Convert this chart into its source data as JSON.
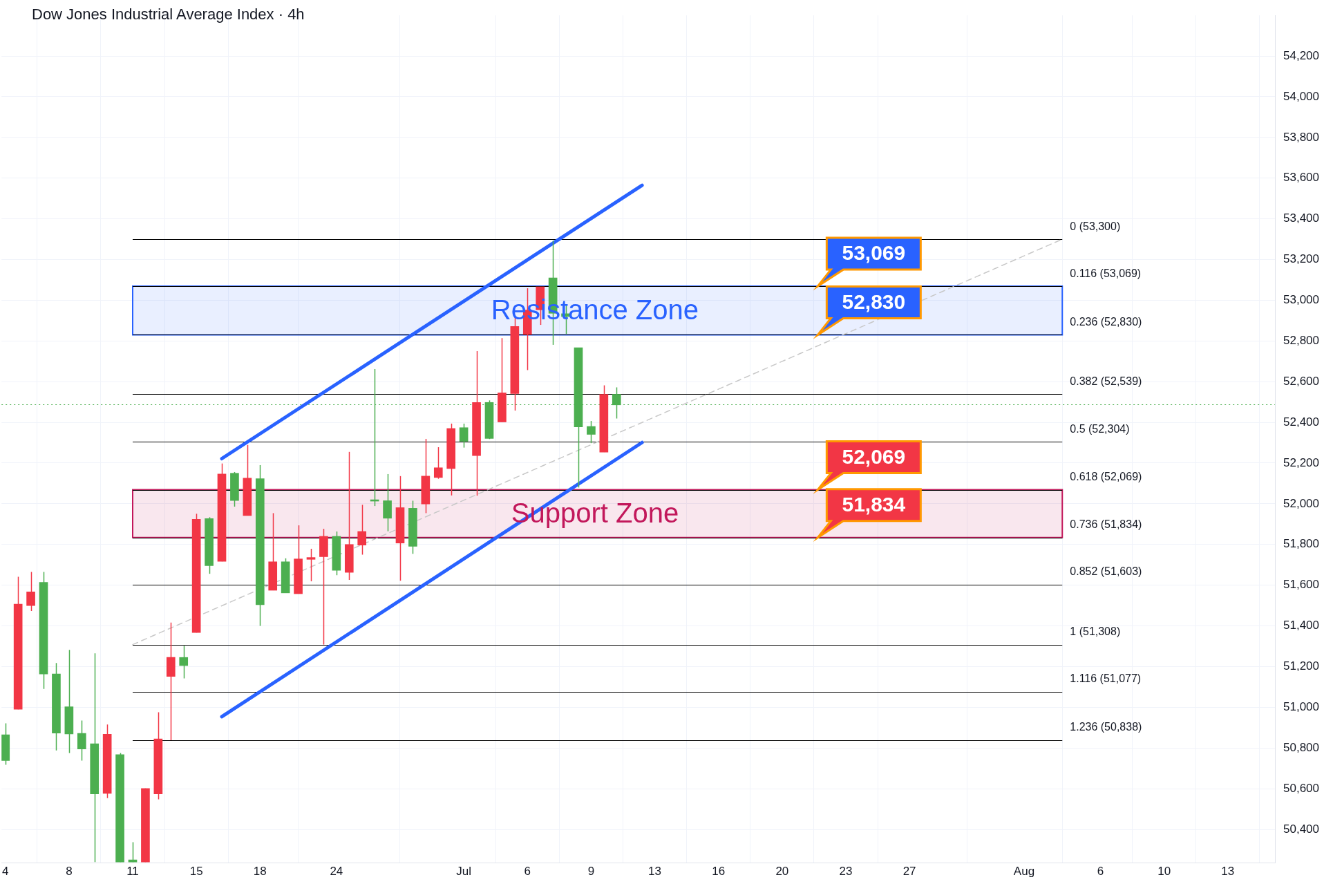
{
  "chart_data": {
    "type": "candlestick",
    "title": "Dow Jones Industrial Average Index · 4h",
    "categories": [
      "4",
      null,
      null,
      null,
      null,
      "8",
      null,
      null,
      null,
      null,
      "11",
      null,
      null,
      null,
      null,
      "15",
      null,
      null,
      null,
      null,
      "18",
      null,
      null,
      null,
      null,
      null,
      "24",
      null,
      null,
      null,
      null,
      null,
      null,
      null,
      null,
      null,
      "Jul",
      null,
      null,
      null,
      null,
      "6",
      null,
      null,
      null,
      null,
      "9",
      null,
      null,
      null,
      null,
      "13",
      null,
      null,
      null,
      null,
      "16",
      null,
      null,
      null,
      null,
      "20",
      null,
      null,
      null,
      null,
      "23",
      null,
      null,
      null,
      null,
      "27",
      null,
      null,
      null,
      null,
      null,
      null,
      null,
      null,
      "Aug",
      null,
      null,
      null,
      null,
      null,
      "6",
      null,
      null,
      null,
      null,
      "10",
      null,
      null,
      null,
      null,
      "13",
      null,
      null,
      null
    ],
    "ohlc": [
      [
        50738,
        50921,
        50718,
        50865
      ],
      [
        51507,
        51641,
        50990,
        50990
      ],
      [
        51567,
        51665,
        51473,
        51500
      ],
      [
        51164,
        51665,
        51090,
        51614
      ],
      [
        50873,
        51218,
        50788,
        51164
      ],
      [
        50869,
        51282,
        50775,
        51003
      ],
      [
        50795,
        50935,
        50738,
        50872
      ],
      [
        50574,
        51265,
        50240,
        50821
      ],
      [
        50868,
        50915,
        50554,
        50577
      ],
      [
        50240,
        50775,
        50240,
        50767
      ],
      [
        50240,
        50337,
        50240,
        50250
      ],
      [
        50601,
        50601,
        50240,
        50240
      ],
      [
        50845,
        50976,
        50548,
        50574
      ],
      [
        51245,
        51416,
        50838,
        51152
      ],
      [
        51205,
        51302,
        51142,
        51245
      ],
      [
        51924,
        51951,
        51367,
        51367
      ],
      [
        51696,
        51934,
        51656,
        51927
      ],
      [
        52146,
        52198,
        51717,
        51717
      ],
      [
        52016,
        52156,
        51986,
        52150
      ],
      [
        52126,
        52289,
        51942,
        51942
      ],
      [
        51504,
        52190,
        51400,
        52123
      ],
      [
        51715,
        51954,
        51575,
        51575
      ],
      [
        51562,
        51732,
        51562,
        51715
      ],
      [
        51729,
        51894,
        51558,
        51558
      ],
      [
        51736,
        51779,
        51619,
        51727
      ],
      [
        51840,
        51877,
        51308,
        51740
      ],
      [
        51673,
        51864,
        51649,
        51840
      ],
      [
        51800,
        52255,
        51626,
        51663
      ],
      [
        51864,
        51995,
        51750,
        51797
      ],
      [
        52013,
        52662,
        51989,
        52016
      ],
      [
        51929,
        52146,
        51865,
        52015
      ],
      [
        51981,
        52136,
        51622,
        51807
      ],
      [
        51791,
        52015,
        51754,
        51978
      ],
      [
        52136,
        52319,
        51954,
        51999
      ],
      [
        52177,
        52278,
        52123,
        52129
      ],
      [
        52370,
        52394,
        52041,
        52173
      ],
      [
        52307,
        52394,
        52276,
        52374
      ],
      [
        52498,
        52750,
        52040,
        52237
      ],
      [
        52321,
        52508,
        52318,
        52498
      ],
      [
        52545,
        52814,
        52402,
        52402
      ],
      [
        52871,
        52915,
        52458,
        52542
      ],
      [
        52952,
        53059,
        52657,
        52832
      ],
      [
        53066,
        53066,
        52879,
        52953
      ],
      [
        52936,
        53293,
        52781,
        53110
      ],
      [
        52920,
        52976,
        52835,
        52934
      ],
      [
        52378,
        52767,
        52080,
        52767
      ],
      [
        52341,
        52407,
        52298,
        52380
      ],
      [
        52538,
        52582,
        52254,
        52254
      ],
      [
        52486,
        52572,
        52419,
        52538
      ],
      null,
      null,
      null,
      null,
      null,
      null,
      null,
      null,
      null,
      null,
      null,
      null,
      null,
      null,
      null,
      null,
      null,
      null,
      null,
      null,
      null,
      null,
      null,
      null,
      null,
      null,
      null,
      null,
      null,
      null,
      null,
      null,
      null,
      null,
      null,
      null,
      null,
      null,
      null,
      null,
      null,
      null,
      null,
      null,
      null,
      null,
      null,
      null,
      null,
      null,
      null
    ],
    "colors": [
      "#4caf50",
      "#f23645",
      "#f23645",
      "#4caf50",
      "#4caf50",
      "#4caf50",
      "#4caf50",
      "#4caf50",
      "#f23645",
      "#4caf50",
      "#4caf50",
      "#f23645",
      "#f23645",
      "#f23645",
      "#4caf50",
      "#f23645",
      "#4caf50",
      "#f23645",
      "#4caf50",
      "#f23645",
      "#4caf50",
      "#f23645",
      "#4caf50",
      "#f23645",
      "#f23645",
      "#f23645",
      "#4caf50",
      "#f23645",
      "#f23645",
      "#4caf50",
      "#4caf50",
      "#f23645",
      "#4caf50",
      "#f23645",
      "#f23645",
      "#f23645",
      "#4caf50",
      "#f23645",
      "#4caf50",
      "#f23645",
      "#f23645",
      "#f23645",
      "#f23645",
      "#4caf50",
      "#4caf50",
      "#4caf50",
      "#4caf50",
      "#f23645",
      "#4caf50",
      null,
      null,
      null,
      null,
      null,
      null,
      null,
      null,
      null,
      null,
      null,
      null,
      null,
      null,
      null,
      null,
      null,
      null,
      null,
      null,
      null,
      null,
      null,
      null,
      null,
      null,
      null,
      null,
      null,
      null,
      null,
      null,
      null,
      null,
      null,
      null,
      null,
      null,
      null,
      null,
      null,
      null,
      null,
      null,
      null,
      null,
      null,
      null,
      null,
      null,
      null
    ],
    "series": [
      {
        "type": "line",
        "color": "#2962ff",
        "values": [
          null,
          null,
          null,
          null,
          null,
          null,
          null,
          null,
          null,
          null,
          null,
          null,
          null,
          null,
          null,
          null,
          null,
          52222,
          null,
          null,
          null,
          null,
          null,
          null,
          null,
          null,
          null,
          null,
          null,
          null,
          null,
          null,
          null,
          null,
          null,
          null,
          null,
          null,
          null,
          null,
          null,
          null,
          null,
          null,
          null,
          null,
          null,
          null,
          null,
          null,
          53565,
          null,
          null,
          null,
          null,
          null,
          null,
          null,
          null,
          null,
          null,
          null,
          null,
          null,
          null,
          null,
          null,
          null,
          null,
          null,
          null,
          null,
          null,
          null,
          null,
          null,
          null,
          null,
          null,
          null,
          null,
          null,
          null,
          null,
          null,
          null,
          null,
          null,
          null,
          null,
          null,
          null,
          null,
          null,
          null,
          null,
          null,
          null,
          null,
          null
        ]
      },
      {
        "type": "line",
        "color": "#2962ff",
        "values": [
          null,
          null,
          null,
          null,
          null,
          null,
          null,
          null,
          null,
          null,
          null,
          null,
          null,
          null,
          null,
          null,
          null,
          50954,
          null,
          null,
          null,
          null,
          null,
          null,
          null,
          null,
          null,
          null,
          null,
          null,
          null,
          null,
          null,
          null,
          null,
          null,
          null,
          null,
          null,
          null,
          null,
          null,
          null,
          null,
          null,
          null,
          null,
          null,
          null,
          null,
          52301,
          null,
          null,
          null,
          null,
          null,
          null,
          null,
          null,
          null,
          null,
          null,
          null,
          null,
          null,
          null,
          null,
          null,
          null,
          null,
          null,
          null,
          null,
          null,
          null,
          null,
          null,
          null,
          null,
          null,
          null,
          null,
          null,
          null,
          null,
          null,
          null,
          null,
          null,
          null,
          null,
          null,
          null,
          null,
          null,
          null,
          null,
          null,
          null,
          null
        ]
      },
      {
        "type": "line",
        "color": "#c8c8c8",
        "line_style": "dashed",
        "values": [
          null,
          null,
          null,
          null,
          null,
          null,
          null,
          null,
          null,
          null,
          51308,
          null,
          null,
          null,
          null,
          null,
          null,
          null,
          null,
          null,
          null,
          null,
          null,
          null,
          null,
          null,
          null,
          null,
          null,
          null,
          null,
          null,
          null,
          null,
          null,
          null,
          null,
          null,
          null,
          null,
          null,
          null,
          null,
          null,
          null,
          null,
          null,
          null,
          null,
          null,
          null,
          null,
          null,
          null,
          null,
          null,
          null,
          null,
          null,
          null,
          null,
          null,
          null,
          null,
          null,
          null,
          null,
          null,
          null,
          null,
          null,
          null,
          null,
          null,
          null,
          null,
          null,
          null,
          null,
          null,
          null,
          null,
          null,
          53300,
          null,
          null,
          null,
          null,
          null,
          null,
          null,
          null,
          null,
          null,
          null,
          null,
          null,
          null,
          null,
          null
        ]
      }
    ],
    "ylim": [
      50235,
      54400
    ],
    "yticks": [
      {
        "value": 50400,
        "label": "50,400"
      },
      {
        "value": 50600,
        "label": "50,600"
      },
      {
        "value": 50800,
        "label": "50,800"
      },
      {
        "value": 51000,
        "label": "51,000"
      },
      {
        "value": 51200,
        "label": "51,200"
      },
      {
        "value": 51400,
        "label": "51,400"
      },
      {
        "value": 51600,
        "label": "51,600"
      },
      {
        "value": 51800,
        "label": "51,800"
      },
      {
        "value": 52000,
        "label": "52,000"
      },
      {
        "value": 52200,
        "label": "52,200"
      },
      {
        "value": 52400,
        "label": "52,400"
      },
      {
        "value": 52600,
        "label": "52,600"
      },
      {
        "value": 52800,
        "label": "52,800"
      },
      {
        "value": 53000,
        "label": "53,000"
      },
      {
        "value": 53200,
        "label": "53,200"
      },
      {
        "value": 53400,
        "label": "53,400"
      },
      {
        "value": 53600,
        "label": "53,600"
      },
      {
        "value": 53800,
        "label": "53,800"
      },
      {
        "value": 54000,
        "label": "54,000"
      },
      {
        "value": 54200,
        "label": "54,200"
      }
    ],
    "ref_lines": [
      {
        "axis": "y",
        "value": 53300,
        "label": "0 (53,300)"
      },
      {
        "axis": "y",
        "value": 53069,
        "label": "0.116 (53,069)"
      },
      {
        "axis": "y",
        "value": 52830,
        "label": "0.236 (52,830)"
      },
      {
        "axis": "y",
        "value": 52539,
        "label": "0.382 (52,539)"
      },
      {
        "axis": "y",
        "value": 52304,
        "label": "0.5 (52,304)"
      },
      {
        "axis": "y",
        "value": 52069,
        "label": "0.618 (52,069)"
      },
      {
        "axis": "y",
        "value": 51834,
        "label": "0.736 (51,834)"
      },
      {
        "axis": "y",
        "value": 51603,
        "label": "0.852 (51,603)"
      },
      {
        "axis": "y",
        "value": 51308,
        "label": "1 (51,308)"
      },
      {
        "axis": "y",
        "value": 51077,
        "label": "1.116 (51,077)"
      },
      {
        "axis": "y",
        "value": 50838,
        "label": "1.236 (50,838)"
      },
      {
        "axis": "y",
        "value": 52488,
        "color": "#4caf50",
        "line_style": "dotted"
      }
    ],
    "bands": [
      {
        "axis": "y",
        "from": 52830,
        "to": 53069,
        "label": "Resistance Zone",
        "color": "#2962ff"
      },
      {
        "axis": "y",
        "from": 51834,
        "to": 52069,
        "label": "Support Zone",
        "color": "#c2185b"
      }
    ],
    "annotations": [
      {
        "text": "53,069",
        "y": 53069
      },
      {
        "text": "52,830",
        "y": 52830
      },
      {
        "text": "52,069",
        "y": 52069
      },
      {
        "text": "51,834",
        "y": 51834
      }
    ],
    "grid": true,
    "legend": false
  }
}
